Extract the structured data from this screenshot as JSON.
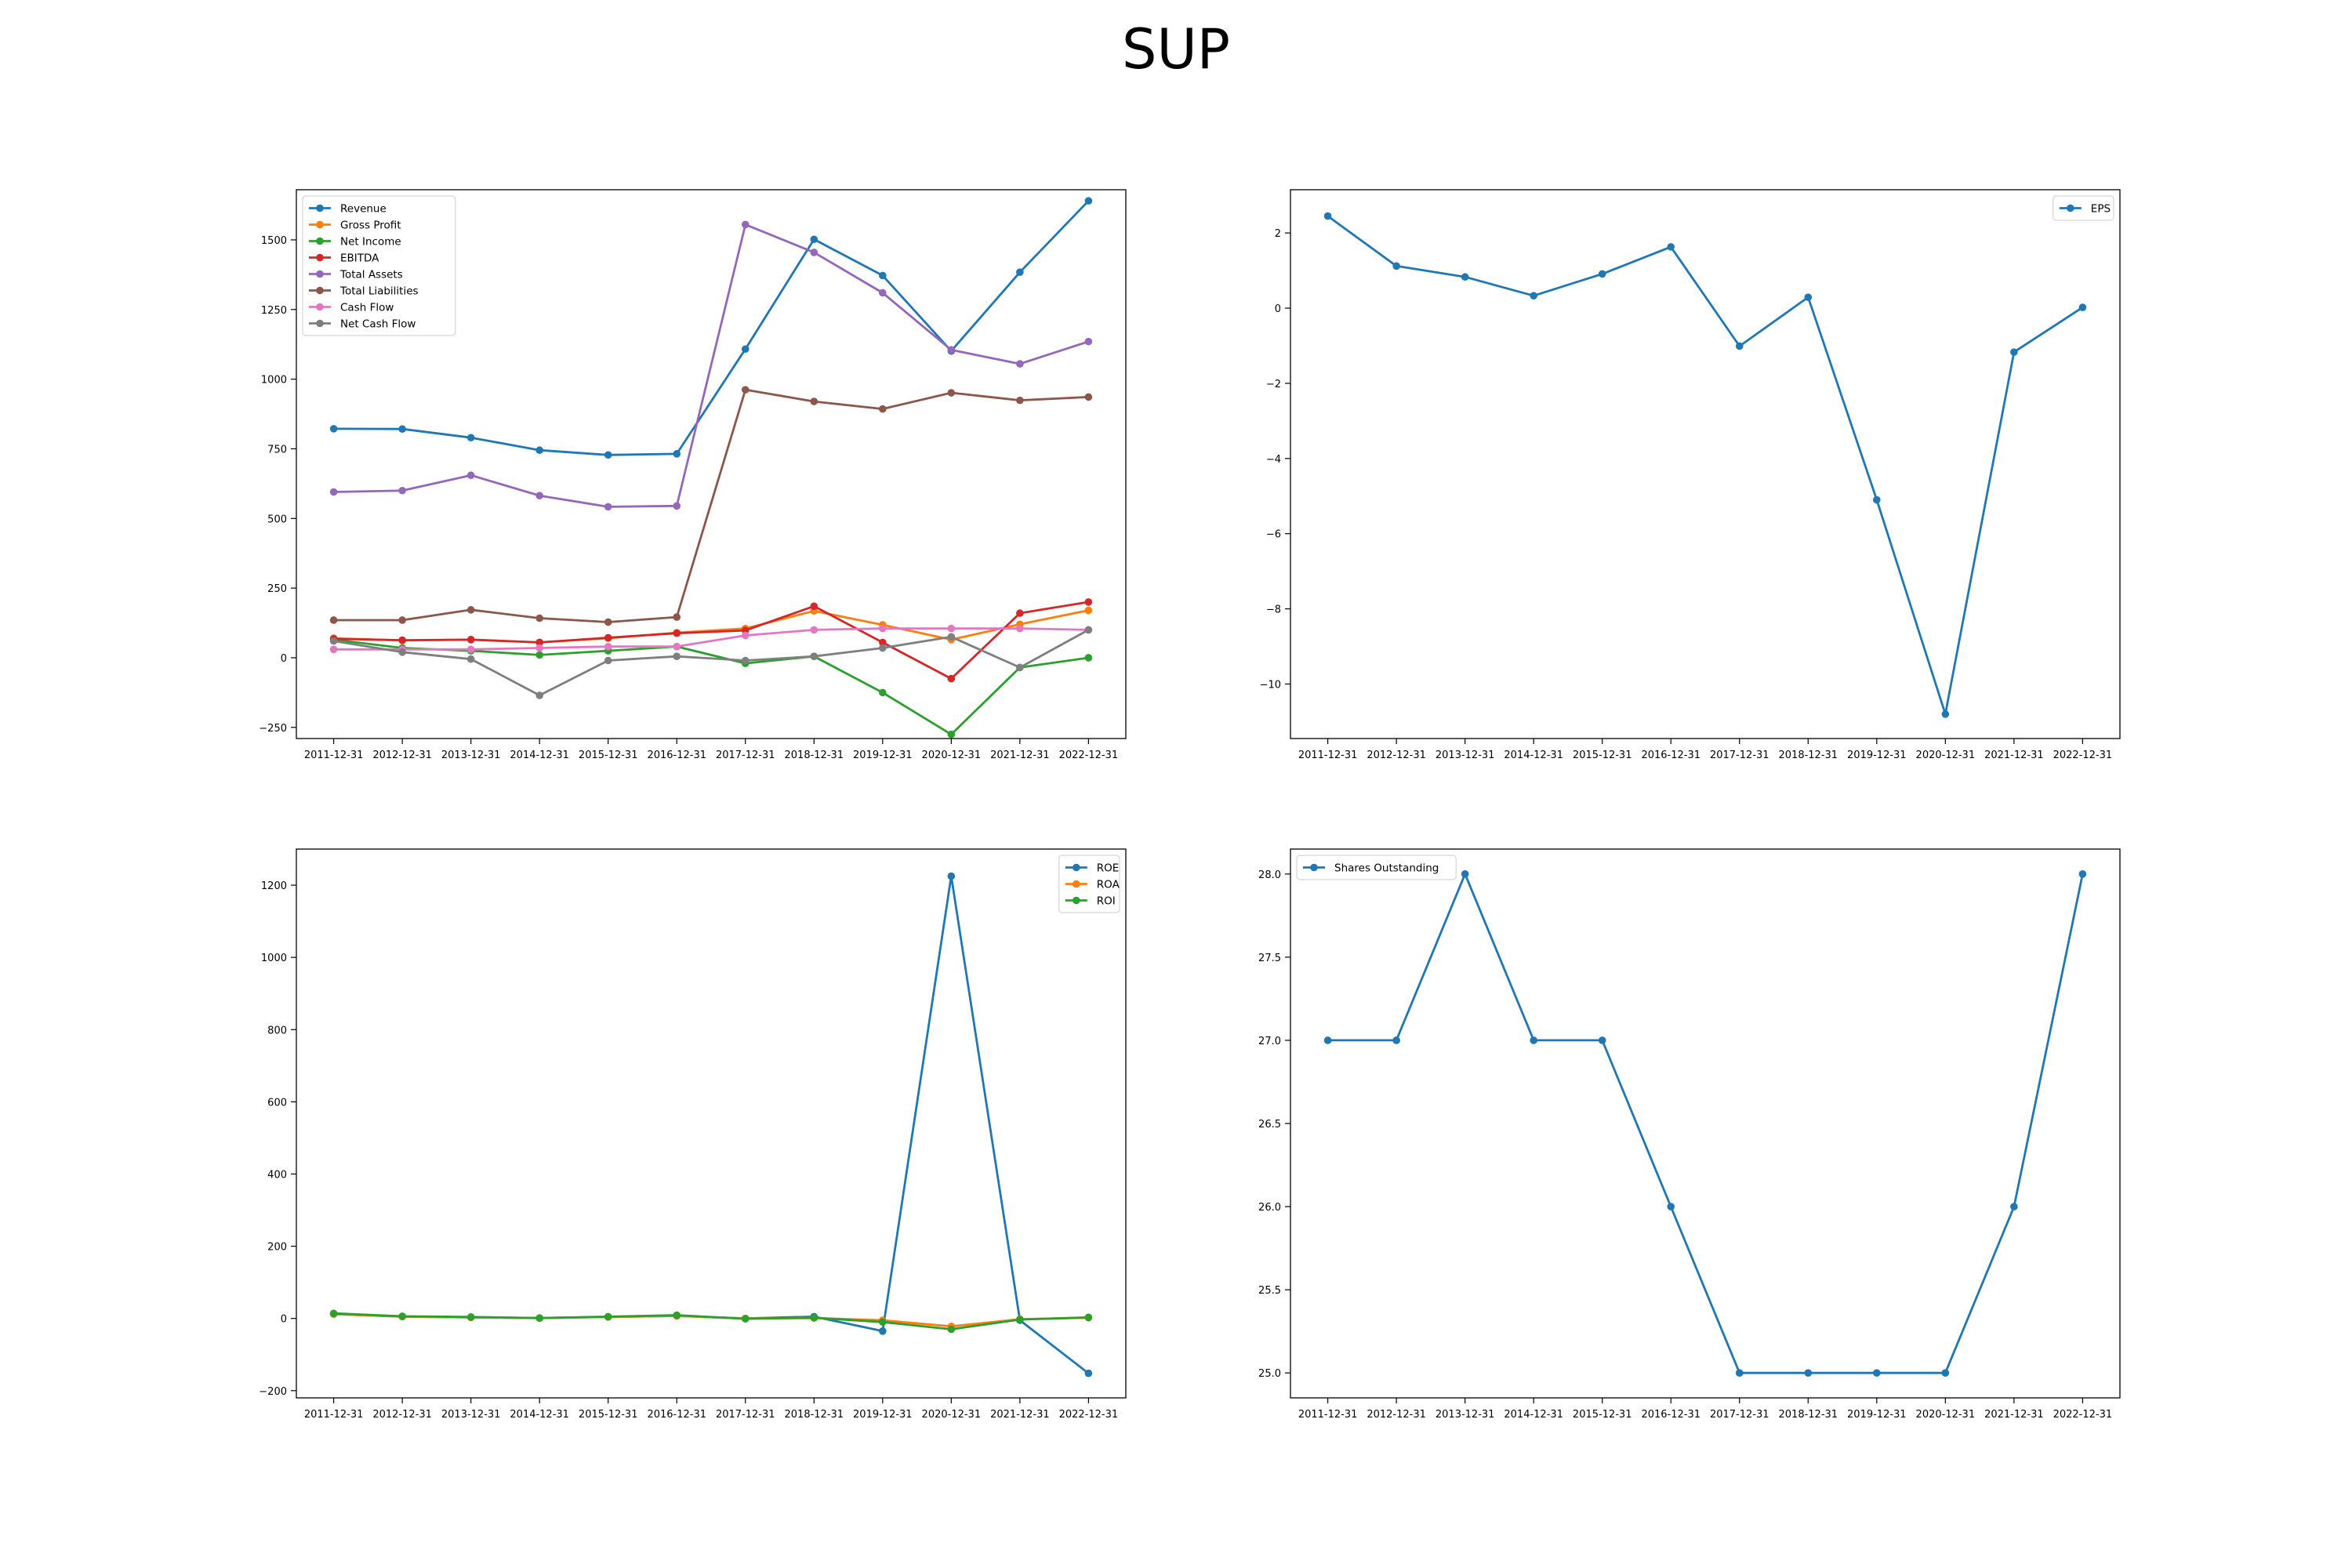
{
  "figure": {
    "title": "SUP"
  },
  "colors": {
    "c0": "#1f77b4",
    "c1": "#ff7f0e",
    "c2": "#2ca02c",
    "c3": "#d62728",
    "c4": "#9467bd",
    "c5": "#8c564b",
    "c6": "#e377c2",
    "c7": "#7f7f7f"
  },
  "chart_data": [
    {
      "id": "fin",
      "type": "line",
      "title": "",
      "xlabel": "",
      "ylabel": "",
      "ylim": [
        -290,
        1680
      ],
      "yticks": [
        -250,
        0,
        250,
        500,
        750,
        1000,
        1250,
        1500
      ],
      "legend": "top-left",
      "grid": false,
      "x": [
        "2011-12-31",
        "2012-12-31",
        "2013-12-31",
        "2014-12-31",
        "2015-12-31",
        "2016-12-31",
        "2017-12-31",
        "2018-12-31",
        "2019-12-31",
        "2020-12-31",
        "2021-12-31",
        "2022-12-31"
      ],
      "series": [
        {
          "name": "Revenue",
          "color": "#1f77b4",
          "values": [
            822,
            821,
            790,
            745,
            728,
            732,
            1108,
            1502,
            1372,
            1101,
            1384,
            1640
          ]
        },
        {
          "name": "Gross Profit",
          "color": "#ff7f0e",
          "values": [
            70,
            62,
            65,
            55,
            70,
            90,
            105,
            168,
            118,
            65,
            120,
            170
          ]
        },
        {
          "name": "Net Income",
          "color": "#2ca02c",
          "values": [
            65,
            35,
            25,
            10,
            25,
            40,
            -20,
            5,
            -125,
            -275,
            -35,
            0
          ]
        },
        {
          "name": "EBITDA",
          "color": "#d62728",
          "values": [
            68,
            63,
            65,
            55,
            72,
            88,
            98,
            185,
            55,
            -75,
            160,
            200
          ]
        },
        {
          "name": "Total Assets",
          "color": "#9467bd",
          "values": [
            595,
            600,
            655,
            582,
            542,
            545,
            1555,
            1455,
            1310,
            1105,
            1055,
            1135
          ]
        },
        {
          "name": "Total Liabilities",
          "color": "#8c564b",
          "values": [
            135,
            135,
            172,
            142,
            128,
            146,
            962,
            920,
            893,
            951,
            924,
            936
          ]
        },
        {
          "name": "Cash Flow",
          "color": "#e377c2",
          "values": [
            30,
            30,
            30,
            35,
            40,
            40,
            80,
            100,
            105,
            105,
            105,
            100
          ]
        },
        {
          "name": "Net Cash Flow",
          "color": "#7f7f7f",
          "values": [
            60,
            20,
            -5,
            -135,
            -10,
            5,
            -10,
            5,
            35,
            75,
            -35,
            100
          ]
        }
      ]
    },
    {
      "id": "eps",
      "type": "line",
      "title": "",
      "xlabel": "",
      "ylabel": "",
      "ylim": [
        -11.45,
        3.15
      ],
      "yticks": [
        -10,
        -8,
        -6,
        -4,
        -2,
        0,
        2
      ],
      "legend": "top-right",
      "grid": false,
      "x": [
        "2011-12-31",
        "2012-12-31",
        "2013-12-31",
        "2014-12-31",
        "2015-12-31",
        "2016-12-31",
        "2017-12-31",
        "2018-12-31",
        "2019-12-31",
        "2020-12-31",
        "2021-12-31",
        "2022-12-31"
      ],
      "series": [
        {
          "name": "EPS",
          "color": "#1f77b4",
          "values": [
            2.45,
            1.12,
            0.83,
            0.33,
            0.91,
            1.63,
            -1.01,
            0.29,
            -5.1,
            -10.8,
            -1.17,
            0.02
          ]
        }
      ]
    },
    {
      "id": "ratios",
      "type": "line",
      "title": "",
      "xlabel": "",
      "ylabel": "",
      "ylim": [
        -220,
        1300
      ],
      "yticks": [
        -200,
        0,
        200,
        400,
        600,
        800,
        1000,
        1200
      ],
      "legend": "top-right",
      "grid": false,
      "x": [
        "2011-12-31",
        "2012-12-31",
        "2013-12-31",
        "2014-12-31",
        "2015-12-31",
        "2016-12-31",
        "2017-12-31",
        "2018-12-31",
        "2019-12-31",
        "2020-12-31",
        "2021-12-31",
        "2022-12-31"
      ],
      "series": [
        {
          "name": "ROE",
          "color": "#1f77b4",
          "values": [
            12,
            5,
            3,
            1,
            4,
            7,
            0,
            5,
            -35,
            1225,
            -5,
            -152
          ]
        },
        {
          "name": "ROA",
          "color": "#ff7f0e",
          "values": [
            12,
            5,
            3,
            1,
            4,
            7,
            0,
            1,
            -5,
            -22,
            -2,
            2
          ]
        },
        {
          "name": "ROI",
          "color": "#2ca02c",
          "values": [
            14,
            6,
            4,
            1,
            5,
            9,
            -1,
            2,
            -10,
            -30,
            -3,
            3
          ]
        }
      ]
    },
    {
      "id": "shares",
      "type": "line",
      "title": "",
      "xlabel": "",
      "ylabel": "",
      "ylim": [
        24.85,
        28.15
      ],
      "yticks": [
        25.0,
        25.5,
        26.0,
        26.5,
        27.0,
        27.5,
        28.0
      ],
      "yticks_decimals": 1,
      "legend": "top-left",
      "grid": false,
      "x": [
        "2011-12-31",
        "2012-12-31",
        "2013-12-31",
        "2014-12-31",
        "2015-12-31",
        "2016-12-31",
        "2017-12-31",
        "2018-12-31",
        "2019-12-31",
        "2020-12-31",
        "2021-12-31",
        "2022-12-31"
      ],
      "series": [
        {
          "name": "Shares Outstanding",
          "color": "#1f77b4",
          "values": [
            27,
            27,
            28,
            27,
            27,
            26,
            25,
            25,
            25,
            25,
            26,
            28
          ]
        }
      ]
    }
  ]
}
